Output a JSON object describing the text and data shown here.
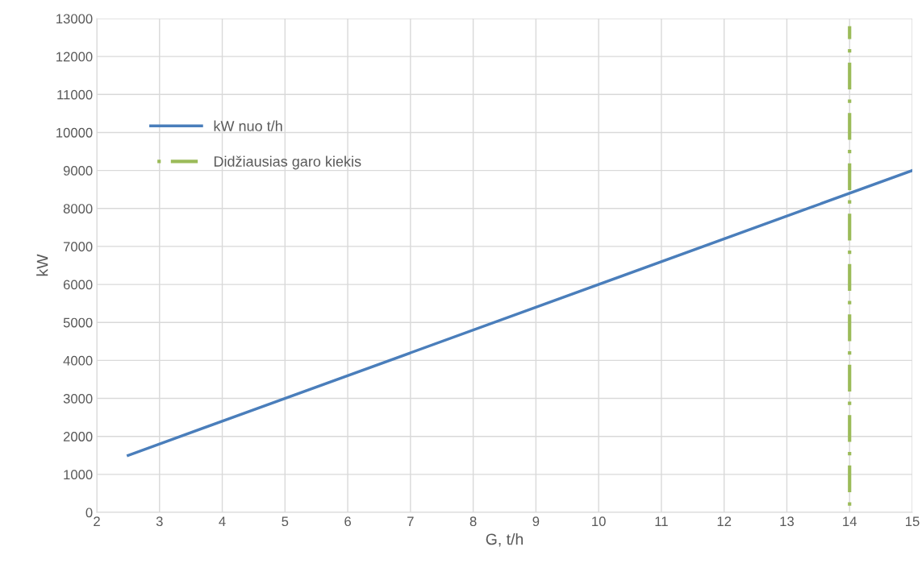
{
  "chart_data": {
    "type": "line",
    "xlabel": "G, t/h",
    "ylabel": "kW",
    "series": [
      {
        "name": "kW nuo t/h",
        "color": "#4a7ebb",
        "x": [
          2.5,
          15
        ],
        "values": [
          1500,
          9000
        ],
        "line_style": "solid"
      },
      {
        "name": "Didžiausias garo kiekis",
        "color": "#9bbb59",
        "x": [
          14,
          14
        ],
        "values": [
          0,
          12800
        ],
        "line_style": "dashdot"
      }
    ],
    "xlim": [
      2,
      15
    ],
    "xticks": [
      2,
      3,
      4,
      5,
      6,
      7,
      8,
      9,
      10,
      11,
      12,
      13,
      14,
      15
    ],
    "ylim": [
      0,
      13000
    ],
    "yticks": [
      0,
      1000,
      2000,
      3000,
      4000,
      5000,
      6000,
      7000,
      8000,
      9000,
      10000,
      11000,
      12000,
      13000
    ],
    "grid": true,
    "legend": "top left",
    "marker": "none"
  }
}
